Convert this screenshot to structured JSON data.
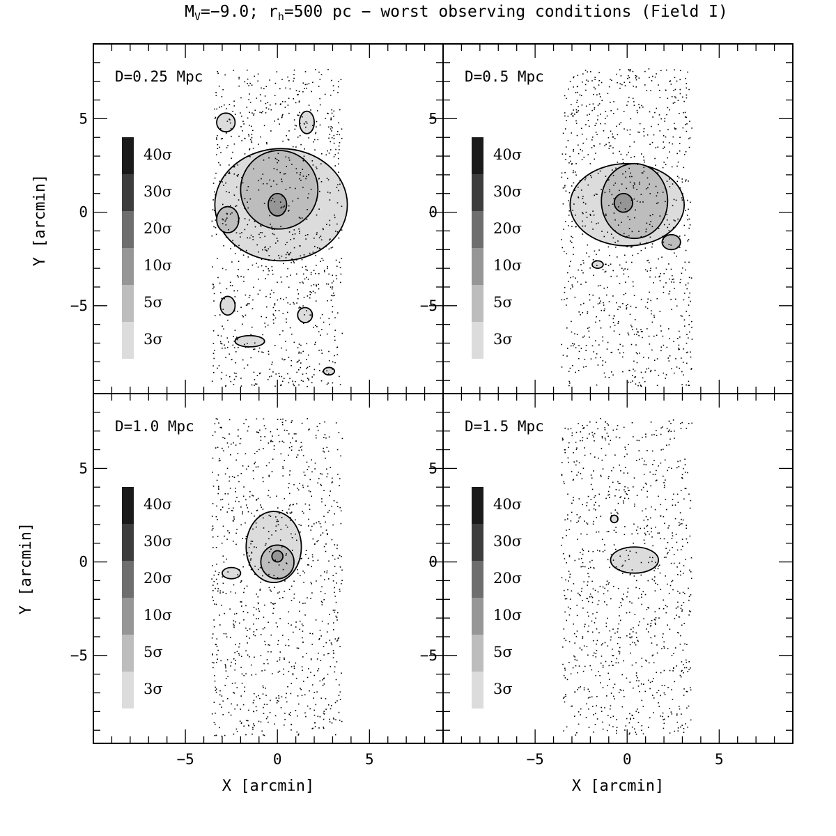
{
  "chart_data": {
    "type": "heatmap",
    "title_parts": {
      "main": "M",
      "main_sub": "V",
      "mid": "=−9.0; r",
      "mid_sub": "h",
      "rest": "=500 pc − worst observing conditions (Field I)"
    },
    "xlabel": "X [arcmin]",
    "ylabel": "Y [arcmin]",
    "xlim": [
      -10,
      9
    ],
    "ylim": [
      -9.7,
      9
    ],
    "ticks": [
      -5,
      0,
      5
    ],
    "tick_labels": [
      "−5",
      "0",
      "5"
    ],
    "field_of_view": {
      "x": [
        -3.6,
        3.5
      ],
      "y": [
        -9.3,
        7.7
      ]
    },
    "density_scale": {
      "levels": [
        "40σ",
        "30σ",
        "20σ",
        "10σ",
        "5σ",
        "3σ"
      ],
      "colors": [
        "#1a1a1a",
        "#3d3d3d",
        "#6e6e6e",
        "#969696",
        "#bdbdbd",
        "#dcdcdc"
      ]
    },
    "panels": [
      {
        "label": "D=0.25 Mpc",
        "blobs": [
          {
            "level": 3,
            "cx": 0.2,
            "cy": 0.4,
            "rx": 3.6,
            "ry": 3.0
          },
          {
            "level": 3,
            "cx": -2.8,
            "cy": 4.8,
            "rx": 0.5,
            "ry": 0.5
          },
          {
            "level": 3,
            "cx": 1.6,
            "cy": 4.8,
            "rx": 0.4,
            "ry": 0.6
          },
          {
            "level": 3,
            "cx": -2.7,
            "cy": -5.0,
            "rx": 0.4,
            "ry": 0.5
          },
          {
            "level": 3,
            "cx": 1.5,
            "cy": -5.5,
            "rx": 0.4,
            "ry": 0.4
          },
          {
            "level": 3,
            "cx": -1.5,
            "cy": -6.9,
            "rx": 0.8,
            "ry": 0.3
          },
          {
            "level": 3,
            "cx": 2.8,
            "cy": -8.5,
            "rx": 0.3,
            "ry": 0.2
          },
          {
            "level": 5,
            "cx": 0.1,
            "cy": 1.2,
            "rx": 2.1,
            "ry": 2.1
          },
          {
            "level": 5,
            "cx": -2.7,
            "cy": -0.4,
            "rx": 0.6,
            "ry": 0.7
          },
          {
            "level": 10,
            "cx": 0.0,
            "cy": 0.4,
            "rx": 0.5,
            "ry": 0.6
          }
        ]
      },
      {
        "label": "D=0.5 Mpc",
        "blobs": [
          {
            "level": 3,
            "cx": 0.0,
            "cy": 0.4,
            "rx": 3.1,
            "ry": 2.2
          },
          {
            "level": 3,
            "cx": -1.6,
            "cy": -2.8,
            "rx": 0.3,
            "ry": 0.2
          },
          {
            "level": 5,
            "cx": 0.4,
            "cy": 0.6,
            "rx": 1.8,
            "ry": 2.0
          },
          {
            "level": 5,
            "cx": 2.4,
            "cy": -1.6,
            "rx": 0.5,
            "ry": 0.4
          },
          {
            "level": 10,
            "cx": -0.2,
            "cy": 0.5,
            "rx": 0.5,
            "ry": 0.5
          }
        ]
      },
      {
        "label": "D=1.0 Mpc",
        "blobs": [
          {
            "level": 3,
            "cx": -0.2,
            "cy": 0.8,
            "rx": 1.5,
            "ry": 1.9
          },
          {
            "level": 3,
            "cx": -2.5,
            "cy": -0.6,
            "rx": 0.5,
            "ry": 0.3
          },
          {
            "level": 5,
            "cx": 0.0,
            "cy": 0.0,
            "rx": 0.9,
            "ry": 0.9
          },
          {
            "level": 10,
            "cx": 0.0,
            "cy": 0.3,
            "rx": 0.3,
            "ry": 0.3
          }
        ]
      },
      {
        "label": "D=1.5 Mpc",
        "blobs": [
          {
            "level": 3,
            "cx": 0.4,
            "cy": 0.1,
            "rx": 1.3,
            "ry": 0.7
          },
          {
            "level": 3,
            "cx": -0.7,
            "cy": 2.3,
            "rx": 0.2,
            "ry": 0.2
          }
        ]
      }
    ]
  }
}
